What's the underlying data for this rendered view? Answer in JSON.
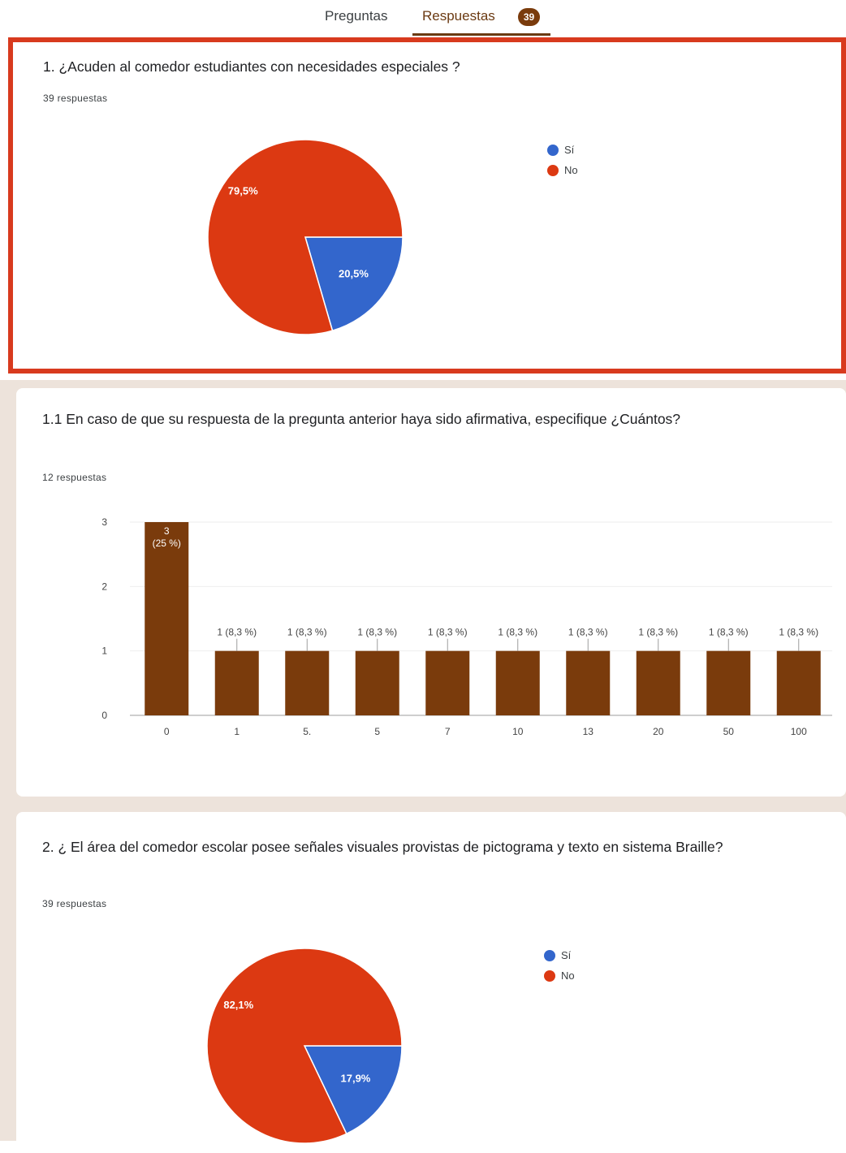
{
  "tabs": {
    "questions": "Preguntas",
    "responses": "Respuestas",
    "badge": "39"
  },
  "colors": {
    "yes": "#3366cc",
    "no": "#dc3912",
    "bar": "#7a3b0c",
    "accent": "#6b3a12",
    "highlight": "#d83a1e"
  },
  "questions": [
    {
      "title": "1. ¿Acuden al comedor estudiantes con necesidades especiales ?",
      "count": "39 respuestas",
      "legend": [
        "Sí",
        "No"
      ],
      "chart_data": {
        "type": "pie",
        "labels": [
          "Sí",
          "No"
        ],
        "values": [
          20.5,
          79.5
        ],
        "value_labels": [
          "20,5%",
          "79,5%"
        ]
      }
    },
    {
      "title": "1.1 En caso de que su respuesta de la pregunta anterior haya sido afirmativa, especifique ¿Cuántos?",
      "count": "12 respuestas",
      "chart_data": {
        "type": "bar",
        "categories": [
          "0",
          "1",
          "5.",
          "5",
          "7",
          "10",
          "13",
          "20",
          "50",
          "100"
        ],
        "values": [
          3,
          1,
          1,
          1,
          1,
          1,
          1,
          1,
          1,
          1
        ],
        "value_labels": [
          "3 (25 %)",
          "1 (8,3 %)",
          "1 (8,3 %)",
          "1 (8,3 %)",
          "1 (8,3 %)",
          "1 (8,3 %)",
          "1 (8,3 %)",
          "1 (8,3 %)",
          "1 (8,3 %)",
          "1 (8,3 %)"
        ],
        "yticks": [
          "0",
          "1",
          "2",
          "3"
        ],
        "ylim": [
          0,
          3
        ]
      }
    },
    {
      "title": "2. ¿ El área del comedor escolar posee señales visuales provistas de pictograma y texto en sistema Braille?",
      "count": "39 respuestas",
      "legend": [
        "Sí",
        "No"
      ],
      "chart_data": {
        "type": "pie",
        "labels": [
          "Sí",
          "No"
        ],
        "values": [
          17.9,
          82.1
        ],
        "value_labels": [
          "17,9%",
          "82,1%"
        ]
      }
    }
  ]
}
